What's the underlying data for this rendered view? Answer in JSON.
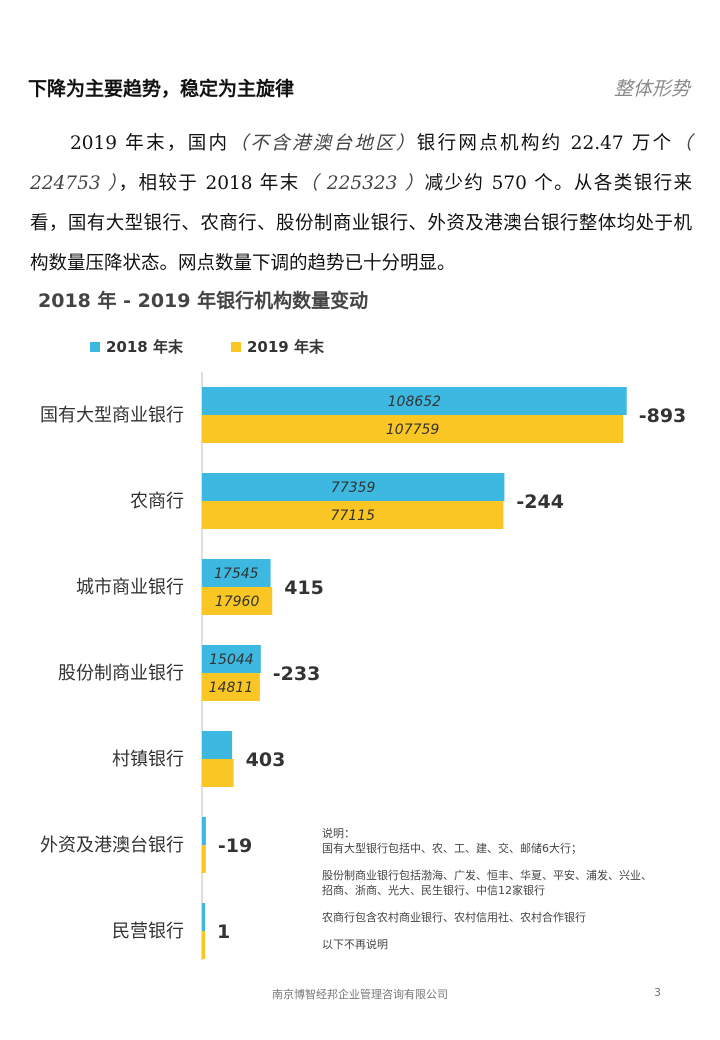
{
  "header": {
    "title": "下降为主要趋势，稳定为主旋律",
    "section": "整体形势"
  },
  "paragraph": {
    "p1": "2019 年末，国内",
    "p2": "（不含港澳台地区）",
    "p3": "银行网点机构约  22.47  万个",
    "p4": "（  224753  ）",
    "p5": "，相较于  2018  年末",
    "p6": "（  225323  ）",
    "p7": "减少约  570  个。从各类银行来看，国有大型银行、农商行、股份制商业银行、外资及港澳台银行整体均处于机构数量压降状态。网点数量下调的趋势已十分明显。"
  },
  "colors": {
    "y2018": "#3db9e1",
    "y2019": "#f9c623",
    "axis": "#bfbfbf"
  },
  "chart_data": {
    "type": "bar",
    "orientation": "horizontal",
    "title": "2018 年 - 2019 年银行机构数量变动",
    "legend_position": "top-left",
    "grid": false,
    "categories": [
      "国有大型商业银行",
      "农商行",
      "城市商业银行",
      "股份制商业银行",
      "村镇银行",
      "外资及港澳台银行",
      "民营银行"
    ],
    "series": [
      {
        "name": "2018 年末",
        "values": [
          108652,
          77359,
          17545,
          15044,
          7700,
          1000,
          200
        ]
      },
      {
        "name": "2019 年末",
        "values": [
          107759,
          77115,
          17960,
          14811,
          8100,
          980,
          200
        ]
      }
    ],
    "bar_labels": {
      "2018 年末": [
        "108652",
        "77359",
        "17545",
        "15044",
        "",
        "",
        ""
      ],
      "2019 年末": [
        "107759",
        "77115",
        "17960",
        "14811",
        "",
        "",
        ""
      ]
    },
    "change_labels": [
      "-893",
      "-244",
      "415",
      "-233",
      "403",
      "-19",
      "1"
    ],
    "xlim": [
      0,
      110000
    ]
  },
  "notes": {
    "line1": "说明：",
    "line2": "国有大型银行包括中、农、工、建、交、邮储6大行；",
    "line3": "股份制商业银行包括渤海、广发、恒丰、华夏、平安、浦发、兴业、",
    "line4": "招商、浙商、光大、民生银行、中信12家银行",
    "line5": "农商行包含农村商业银行、农村信用社、农村合作银行",
    "line6": "以下不再说明"
  },
  "footer": {
    "company": "南京博智经邦企业管理咨询有限公司",
    "page": "3"
  }
}
